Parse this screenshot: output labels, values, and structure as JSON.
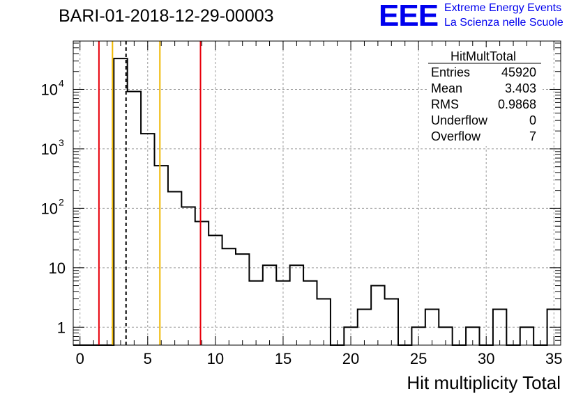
{
  "title": "BARI-01-2018-12-29-00003",
  "logo": {
    "mark": "EEE",
    "line1": "Extreme Energy Events",
    "line2": "La Scienza nelle Scuole",
    "color": "#0000ee"
  },
  "stats": {
    "name": "HitMultTotal",
    "rows": [
      {
        "label": "Entries",
        "value": "45920"
      },
      {
        "label": "Mean",
        "value": "3.403"
      },
      {
        "label": "RMS",
        "value": "0.9868"
      },
      {
        "label": "Underflow",
        "value": "0"
      },
      {
        "label": "Overflow",
        "value": "7"
      }
    ]
  },
  "chart_data": {
    "type": "histogram",
    "xlabel": "Hit multiplicity Total",
    "ylabel": "",
    "xlim": [
      -0.5,
      35.5
    ],
    "ylim": [
      0.5,
      65000
    ],
    "yscale": "log",
    "grid": true,
    "legend_position": "top-right",
    "x_ticks": [
      0,
      5,
      10,
      15,
      20,
      25,
      30,
      35
    ],
    "y_ticks": [
      {
        "value": 1,
        "label": "1"
      },
      {
        "value": 10,
        "label": "10"
      },
      {
        "value": 100,
        "label": "10",
        "exp": "2"
      },
      {
        "value": 1000,
        "label": "10",
        "exp": "3"
      },
      {
        "value": 10000,
        "label": "10",
        "exp": "4"
      }
    ],
    "bin_width": 1,
    "bins": [
      {
        "x": 0,
        "count": 0
      },
      {
        "x": 1,
        "count": 0
      },
      {
        "x": 2,
        "count": 0
      },
      {
        "x": 3,
        "count": 33000
      },
      {
        "x": 4,
        "count": 9200
      },
      {
        "x": 5,
        "count": 1800
      },
      {
        "x": 6,
        "count": 520
      },
      {
        "x": 7,
        "count": 190
      },
      {
        "x": 8,
        "count": 105
      },
      {
        "x": 9,
        "count": 60
      },
      {
        "x": 10,
        "count": 35
      },
      {
        "x": 11,
        "count": 21
      },
      {
        "x": 12,
        "count": 17
      },
      {
        "x": 13,
        "count": 6
      },
      {
        "x": 14,
        "count": 11
      },
      {
        "x": 15,
        "count": 6
      },
      {
        "x": 16,
        "count": 11
      },
      {
        "x": 17,
        "count": 6
      },
      {
        "x": 18,
        "count": 3
      },
      {
        "x": 19,
        "count": 0
      },
      {
        "x": 20,
        "count": 1
      },
      {
        "x": 21,
        "count": 2
      },
      {
        "x": 22,
        "count": 5
      },
      {
        "x": 23,
        "count": 3
      },
      {
        "x": 24,
        "count": 0
      },
      {
        "x": 25,
        "count": 1
      },
      {
        "x": 26,
        "count": 2
      },
      {
        "x": 27,
        "count": 1
      },
      {
        "x": 28,
        "count": 0
      },
      {
        "x": 29,
        "count": 1
      },
      {
        "x": 30,
        "count": 0
      },
      {
        "x": 31,
        "count": 2
      },
      {
        "x": 32,
        "count": 0
      },
      {
        "x": 33,
        "count": 1
      },
      {
        "x": 34,
        "count": 0
      },
      {
        "x": 35,
        "count": 2
      }
    ],
    "markers": [
      {
        "x": 1.4,
        "color": "#e8000b",
        "style": "solid"
      },
      {
        "x": 2.4,
        "color": "#f0b800",
        "style": "solid"
      },
      {
        "x": 3.4,
        "color": "#000000",
        "style": "dashed"
      },
      {
        "x": 5.9,
        "color": "#f0b800",
        "style": "solid"
      },
      {
        "x": 8.9,
        "color": "#e8000b",
        "style": "solid"
      }
    ]
  }
}
